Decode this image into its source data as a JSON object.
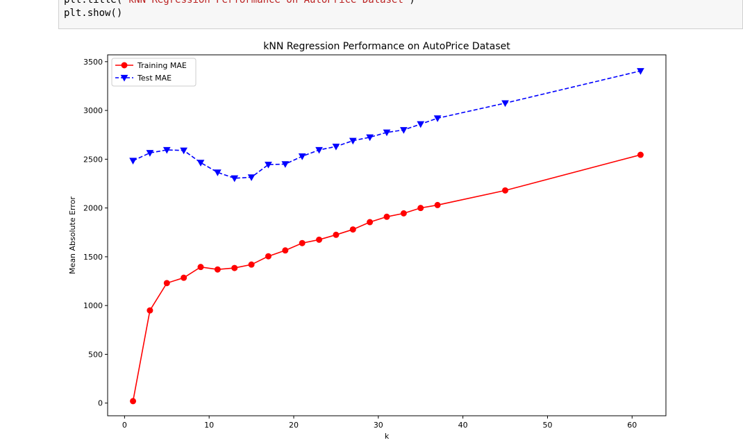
{
  "code_cell": {
    "line1_prefix": "plt.title(",
    "line1_string": "'kNN Regression Performance on AutoPrice Dataset'",
    "line1_suffix": ")",
    "line2": "plt.show()"
  },
  "colors": {
    "training": "#ff0000",
    "test": "#0000ff",
    "code_string": "#ba2121",
    "cell_background": "#f7f7f7"
  },
  "chart_data": {
    "type": "line",
    "title": "kNN Regression Performance on AutoPrice Dataset",
    "xlabel": "k",
    "ylabel": "Mean Absolute Error",
    "xlim": [
      -2,
      64
    ],
    "ylim": [
      -130,
      3570
    ],
    "xticks": [
      0,
      10,
      20,
      30,
      40,
      50,
      60
    ],
    "yticks": [
      0,
      500,
      1000,
      1500,
      2000,
      2500,
      3000,
      3500
    ],
    "grid": false,
    "legend_position": "top-left",
    "x": [
      1,
      3,
      5,
      7,
      9,
      11,
      13,
      15,
      17,
      19,
      21,
      23,
      25,
      27,
      29,
      31,
      33,
      35,
      37,
      45,
      61
    ],
    "series": [
      {
        "name": "Training MAE",
        "color": "#ff0000",
        "line_style": "solid",
        "marker": "circle",
        "values": [
          20,
          950,
          1230,
          1285,
          1395,
          1370,
          1385,
          1420,
          1505,
          1565,
          1640,
          1675,
          1725,
          1780,
          1855,
          1910,
          1945,
          2000,
          2030,
          2180,
          2545
        ]
      },
      {
        "name": "Test MAE",
        "color": "#0000ff",
        "line_style": "dashed",
        "marker": "triangle-down",
        "values": [
          2485,
          2565,
          2595,
          2590,
          2465,
          2365,
          2305,
          2315,
          2445,
          2450,
          2530,
          2595,
          2630,
          2690,
          2725,
          2775,
          2800,
          2860,
          2920,
          3075,
          3405
        ]
      }
    ]
  }
}
